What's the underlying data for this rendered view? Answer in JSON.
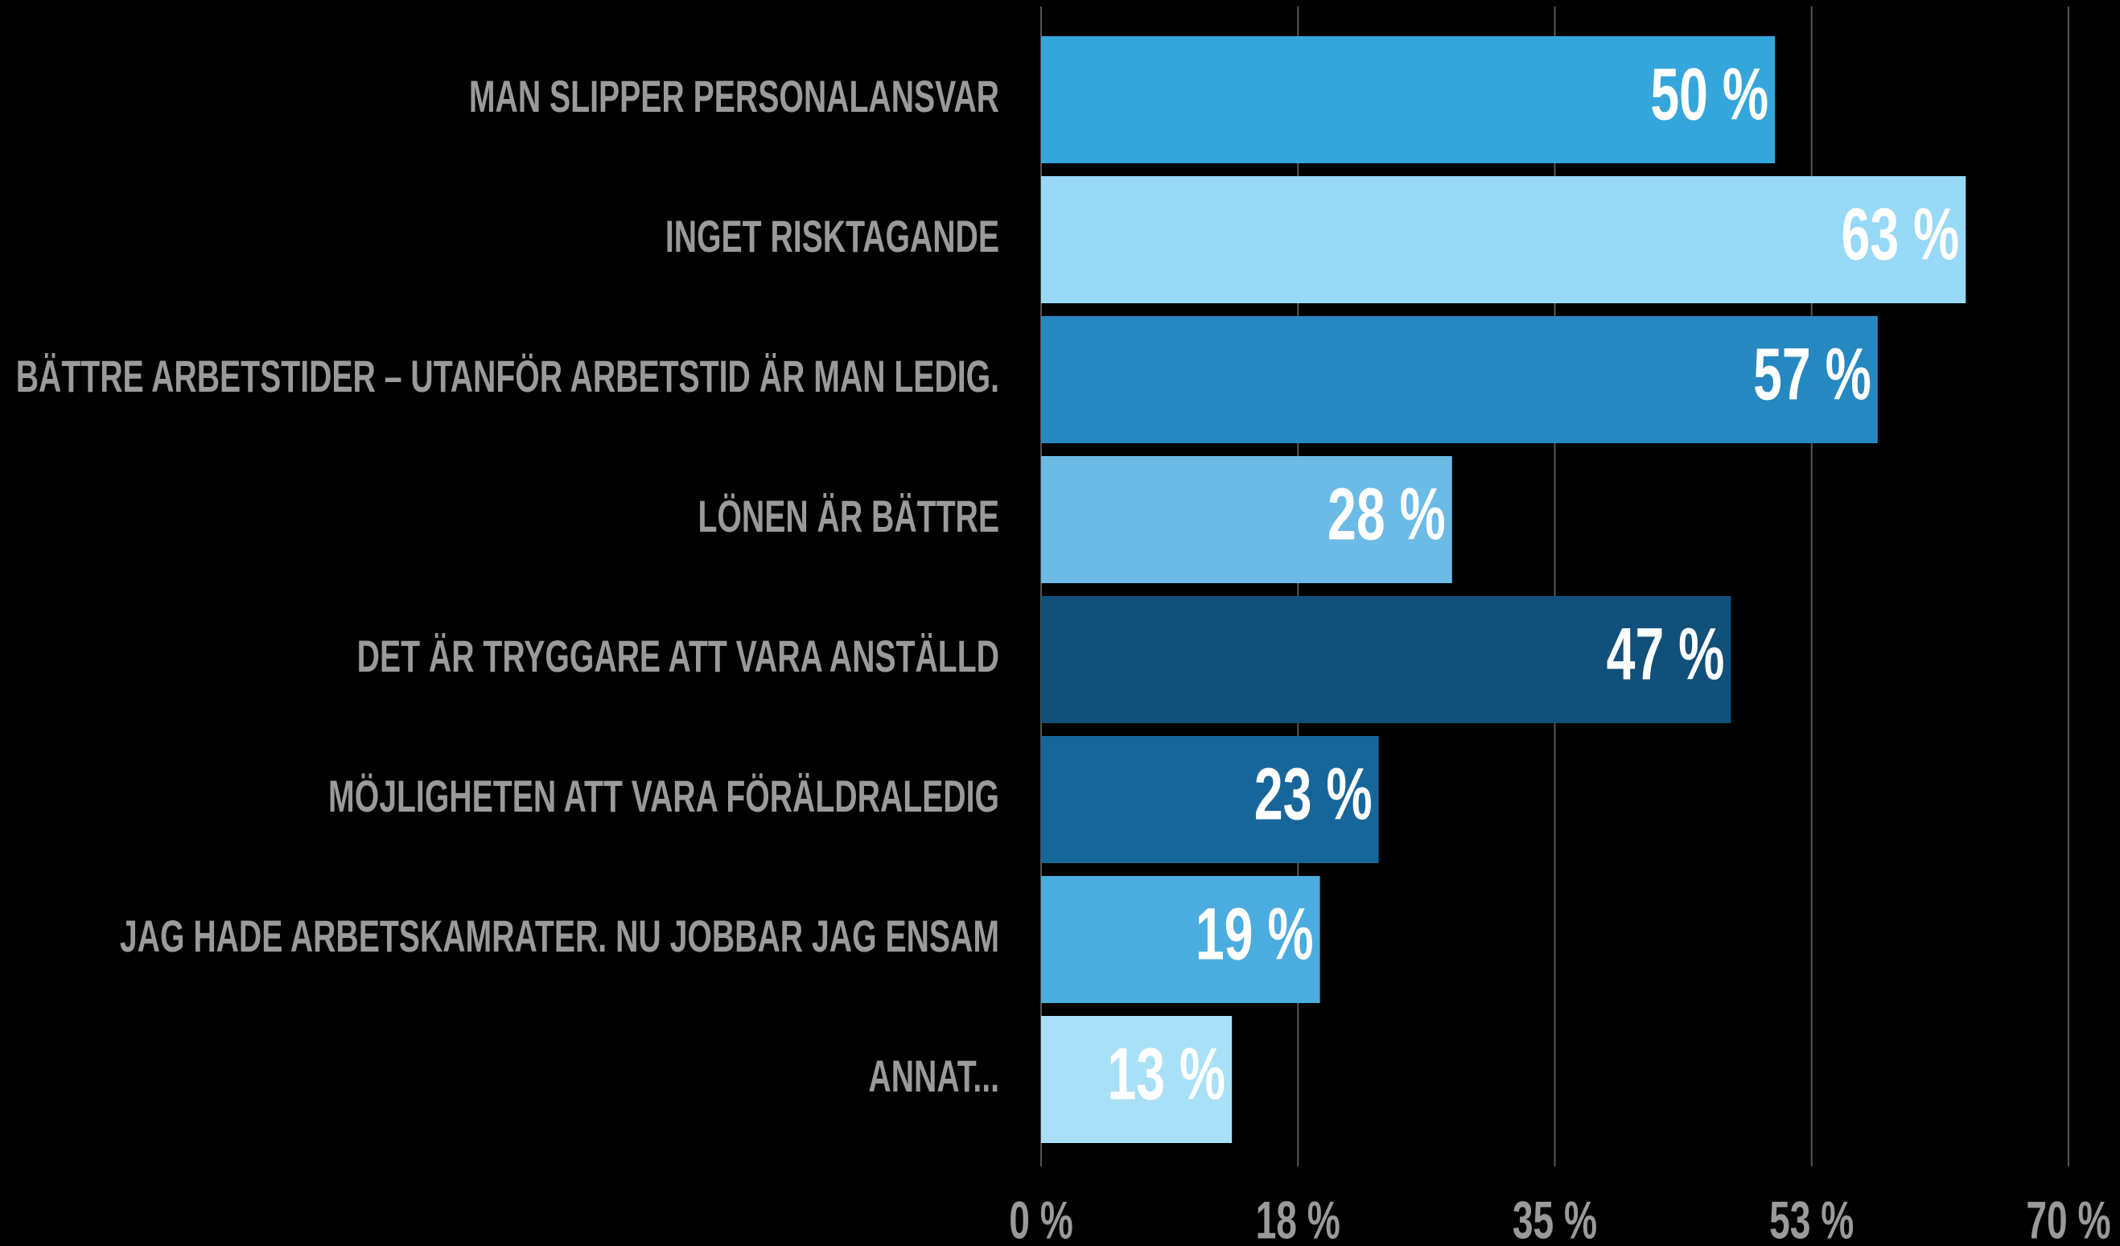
{
  "chart_data": {
    "type": "bar",
    "orientation": "horizontal",
    "categories": [
      "MAN SLIPPER PERSONALANSVAR",
      "INGET RISKTAGANDE",
      "BÄTTRE ARBETSTIDER – UTANFÖR ARBETSTID ÄR MAN LEDIG.",
      "LÖNEN ÄR BÄTTRE",
      "DET ÄR TRYGGARE ATT VARA ANSTÄLLD",
      "MÖJLIGHETEN ATT VARA FÖRÄLDRALEDIG",
      "JAG HADE ARBETSKAMRATER. NU JOBBAR JAG ENSAM",
      "ANNAT..."
    ],
    "values": [
      50,
      63,
      57,
      28,
      47,
      23,
      19,
      13
    ],
    "value_labels": [
      "50 %",
      "63 %",
      "57 %",
      "28 %",
      "47 %",
      "23 %",
      "19 %",
      "13 %"
    ],
    "colors": [
      "#35a6dc",
      "#97d9f6",
      "#2688c0",
      "#6cbae6",
      "#10507a",
      "#17669a",
      "#4aacdf",
      "#a8e0f8"
    ],
    "xlim": [
      0,
      70
    ],
    "xticks": [
      {
        "value": 0,
        "label": "0 %"
      },
      {
        "value": 17.5,
        "label": "18 %"
      },
      {
        "value": 35,
        "label": "35 %"
      },
      {
        "value": 52.5,
        "label": "53 %"
      },
      {
        "value": 70,
        "label": "70 %"
      }
    ],
    "grid": true
  }
}
